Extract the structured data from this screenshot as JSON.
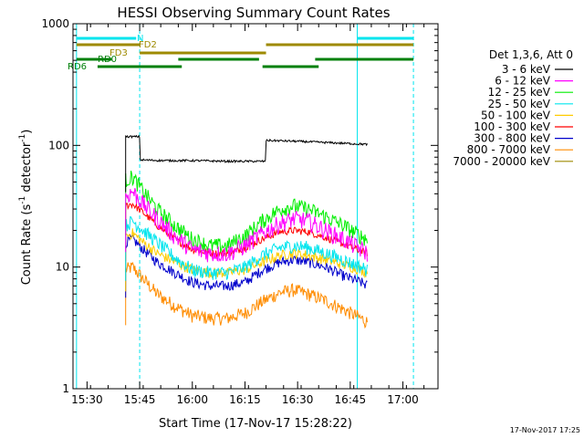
{
  "chart_data": {
    "type": "line",
    "title": "HESSI Observing Summary Count Rates",
    "xlabel": "Start Time (17-Nov-17 15:28:22)",
    "ylabel": "Count Rate (s⁻¹ detector⁻¹)",
    "ylabel_parts": {
      "main": "Count Rate (s",
      "sup1": "-1",
      "mid": " detector",
      "sup2": "-1",
      "end": ")"
    },
    "xlim": [
      "15:26",
      "17:10"
    ],
    "ylim": [
      1,
      1000
    ],
    "yscale": "log",
    "x_ticks": [
      "15:30",
      "15:45",
      "16:00",
      "16:15",
      "16:30",
      "16:45",
      "17:00"
    ],
    "y_ticks": [
      "1",
      "10",
      "100",
      "1000"
    ],
    "legend": {
      "header": "Det 1,3,6, Att 0",
      "placement": "right"
    },
    "timestamp": "17-Nov-2017 17:25",
    "state_bars": [
      {
        "label": "N",
        "color": "#00e5ee",
        "segments": [
          [
            "15:27",
            "15:44"
          ],
          [
            "16:47",
            "17:03"
          ]
        ]
      },
      {
        "label": "FD2",
        "color": "#9e8a00",
        "segments": [
          [
            "15:27",
            "15:45"
          ],
          [
            "16:21",
            "17:03"
          ]
        ]
      },
      {
        "label": "FD3",
        "color": "#9e8a00",
        "segments": [
          [
            "15:45",
            "16:21"
          ]
        ]
      },
      {
        "label": "RD0",
        "color": "#00800a",
        "segments": [
          [
            "15:27",
            "15:37"
          ],
          [
            "15:56",
            "16:19"
          ],
          [
            "16:35",
            "17:03"
          ]
        ]
      },
      {
        "label": "RD6",
        "color": "#00800a",
        "segments": [
          [
            "15:33",
            "15:57"
          ],
          [
            "16:20",
            "16:36"
          ]
        ]
      }
    ],
    "vlines": [
      {
        "x": "15:27",
        "color": "#00e5ee",
        "style": "solid"
      },
      {
        "x": "15:45",
        "color": "#00e5ee",
        "style": "dashed"
      },
      {
        "x": "16:47",
        "color": "#00e5ee",
        "style": "solid"
      },
      {
        "x": "17:03",
        "color": "#00e5ee",
        "style": "dashed"
      }
    ],
    "series": [
      {
        "name": "3 - 6 keV",
        "color": "#000000",
        "x": [
          "15:41",
          "15:44",
          "15:45",
          "15:52",
          "16:00",
          "16:10",
          "16:20",
          "16:21",
          "16:30",
          "16:40",
          "16:50"
        ],
        "values": [
          118,
          118,
          76,
          75,
          75,
          74,
          74,
          110,
          108,
          105,
          102
        ]
      },
      {
        "name": "6 - 12 keV",
        "color": "#ff00ff",
        "x": [
          "15:41",
          "15:43",
          "15:46",
          "15:50",
          "15:55",
          "16:00",
          "16:05",
          "16:10",
          "16:15",
          "16:20",
          "16:25",
          "16:29",
          "16:33",
          "16:38",
          "16:43",
          "16:48",
          "16:50"
        ],
        "values": [
          38,
          42,
          33,
          25,
          18,
          14,
          13,
          13,
          15,
          19,
          23,
          25,
          24,
          20,
          17,
          14,
          13
        ]
      },
      {
        "name": "12 - 25 keV",
        "color": "#00ee00",
        "x": [
          "15:41",
          "15:43",
          "15:46",
          "15:50",
          "15:55",
          "16:00",
          "16:05",
          "16:10",
          "16:15",
          "16:20",
          "16:25",
          "16:29",
          "16:33",
          "16:38",
          "16:43",
          "16:48",
          "16:50"
        ],
        "values": [
          52,
          55,
          42,
          30,
          22,
          17,
          15,
          15,
          18,
          24,
          30,
          32,
          30,
          26,
          22,
          18,
          17
        ]
      },
      {
        "name": "25 - 50 keV",
        "color": "#00e5ee",
        "x": [
          "15:41",
          "15:43",
          "15:46",
          "15:50",
          "15:55",
          "16:00",
          "16:05",
          "16:10",
          "16:15",
          "16:20",
          "16:25",
          "16:29",
          "16:33",
          "16:38",
          "16:43",
          "16:48",
          "16:50"
        ],
        "values": [
          22,
          24,
          20,
          16,
          12,
          9.5,
          9,
          9,
          10,
          12.5,
          14.5,
          15,
          14.5,
          13,
          11.5,
          10,
          9.5
        ]
      },
      {
        "name": "50 - 100 keV",
        "color": "#ffcc00",
        "x": [
          "15:41",
          "15:43",
          "15:46",
          "15:50",
          "15:55",
          "16:00",
          "16:05",
          "16:10",
          "16:15",
          "16:20",
          "16:25",
          "16:29",
          "16:33",
          "16:38",
          "16:43",
          "16:48",
          "16:50"
        ],
        "values": [
          18,
          19,
          16,
          13,
          11,
          9.5,
          9,
          9,
          9.5,
          11,
          12.5,
          13,
          12.5,
          11.5,
          10.5,
          9.5,
          9
        ]
      },
      {
        "name": "100 - 300 keV",
        "color": "#ff0000",
        "x": [
          "15:41",
          "15:43",
          "15:46",
          "15:50",
          "15:55",
          "16:00",
          "16:05",
          "16:10",
          "16:15",
          "16:20",
          "16:25",
          "16:29",
          "16:33",
          "16:38",
          "16:43",
          "16:48",
          "16:50"
        ],
        "values": [
          32,
          33,
          28,
          22,
          17,
          14,
          13,
          13,
          14.5,
          17,
          19.5,
          20,
          19.5,
          17.5,
          15.5,
          13.5,
          13
        ]
      },
      {
        "name": "300 - 800 keV",
        "color": "#0000cc",
        "x": [
          "15:41",
          "15:43",
          "15:46",
          "15:50",
          "15:55",
          "16:00",
          "16:05",
          "16:10",
          "16:15",
          "16:20",
          "16:25",
          "16:29",
          "16:33",
          "16:38",
          "16:43",
          "16:48",
          "16:50"
        ],
        "values": [
          16,
          17,
          14,
          11,
          9,
          7.5,
          7,
          7,
          7.5,
          9.5,
          11,
          11.5,
          11,
          10,
          8.5,
          7.5,
          7
        ]
      },
      {
        "name": "800 - 7000 keV",
        "color": "#ff8c00",
        "x": [
          "15:41",
          "15:43",
          "15:46",
          "15:50",
          "15:55",
          "16:00",
          "16:05",
          "16:10",
          "16:15",
          "16:20",
          "16:25",
          "16:29",
          "16:33",
          "16:38",
          "16:43",
          "16:48",
          "16:50"
        ],
        "values": [
          9.5,
          10,
          8,
          6,
          4.8,
          4,
          3.8,
          3.8,
          4.2,
          5.2,
          6.2,
          6.5,
          6,
          5.3,
          4.5,
          3.8,
          3.5
        ]
      },
      {
        "name": "7000 - 20000 keV",
        "color": "#9e8a00",
        "x": [],
        "values": []
      }
    ]
  }
}
